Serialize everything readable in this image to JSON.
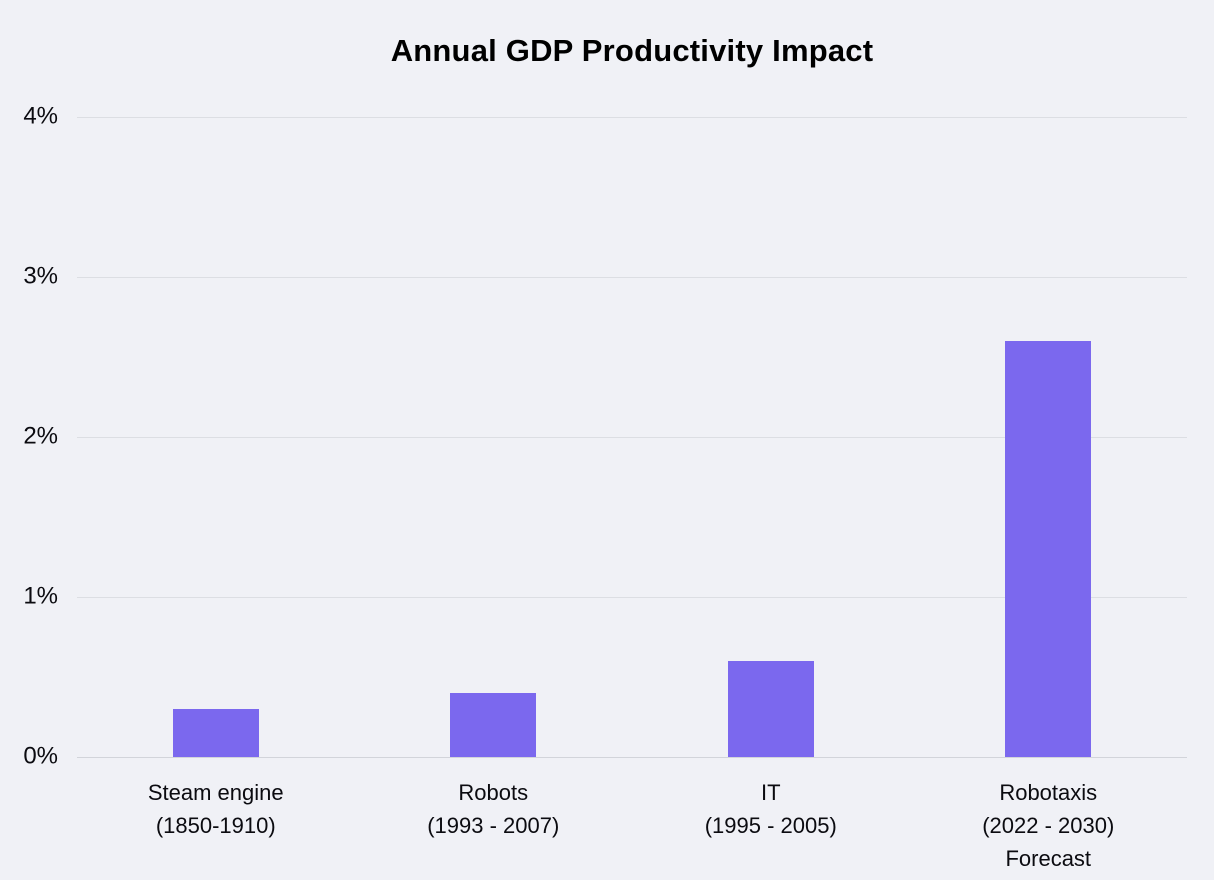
{
  "page": {
    "background_color": "#F0F1F6"
  },
  "chart_data": {
    "type": "bar",
    "title": "Annual GDP Productivity Impact",
    "categories": [
      "Steam engine (1850-1910)",
      "Robots (1993 - 2007)",
      "IT (1995 - 2005)",
      "Robotaxis (2022 - 2030) Forecast"
    ],
    "category_lines": [
      [
        "Steam engine",
        "(1850-1910)"
      ],
      [
        "Robots",
        "(1993 - 2007)"
      ],
      [
        "IT",
        "(1995 - 2005)"
      ],
      [
        "Robotaxis",
        "(2022 - 2030)",
        "Forecast"
      ]
    ],
    "values": [
      0.3,
      0.4,
      0.6,
      2.6
    ],
    "unit": "%",
    "xlabel": "",
    "ylabel": "",
    "ylim": [
      0,
      4
    ],
    "yticks": [
      {
        "label": "0%",
        "value": 0
      },
      {
        "label": "1%",
        "value": 1
      },
      {
        "label": "2%",
        "value": 2
      },
      {
        "label": "3%",
        "value": 3
      },
      {
        "label": "4%",
        "value": 4
      }
    ],
    "grid": "horizontal",
    "legend": "none",
    "bar_color": "#7B68EE",
    "gridline_color": "#DCDEE3",
    "baseline_color": "#D2D4DA",
    "text_color": "#0B0B10"
  }
}
